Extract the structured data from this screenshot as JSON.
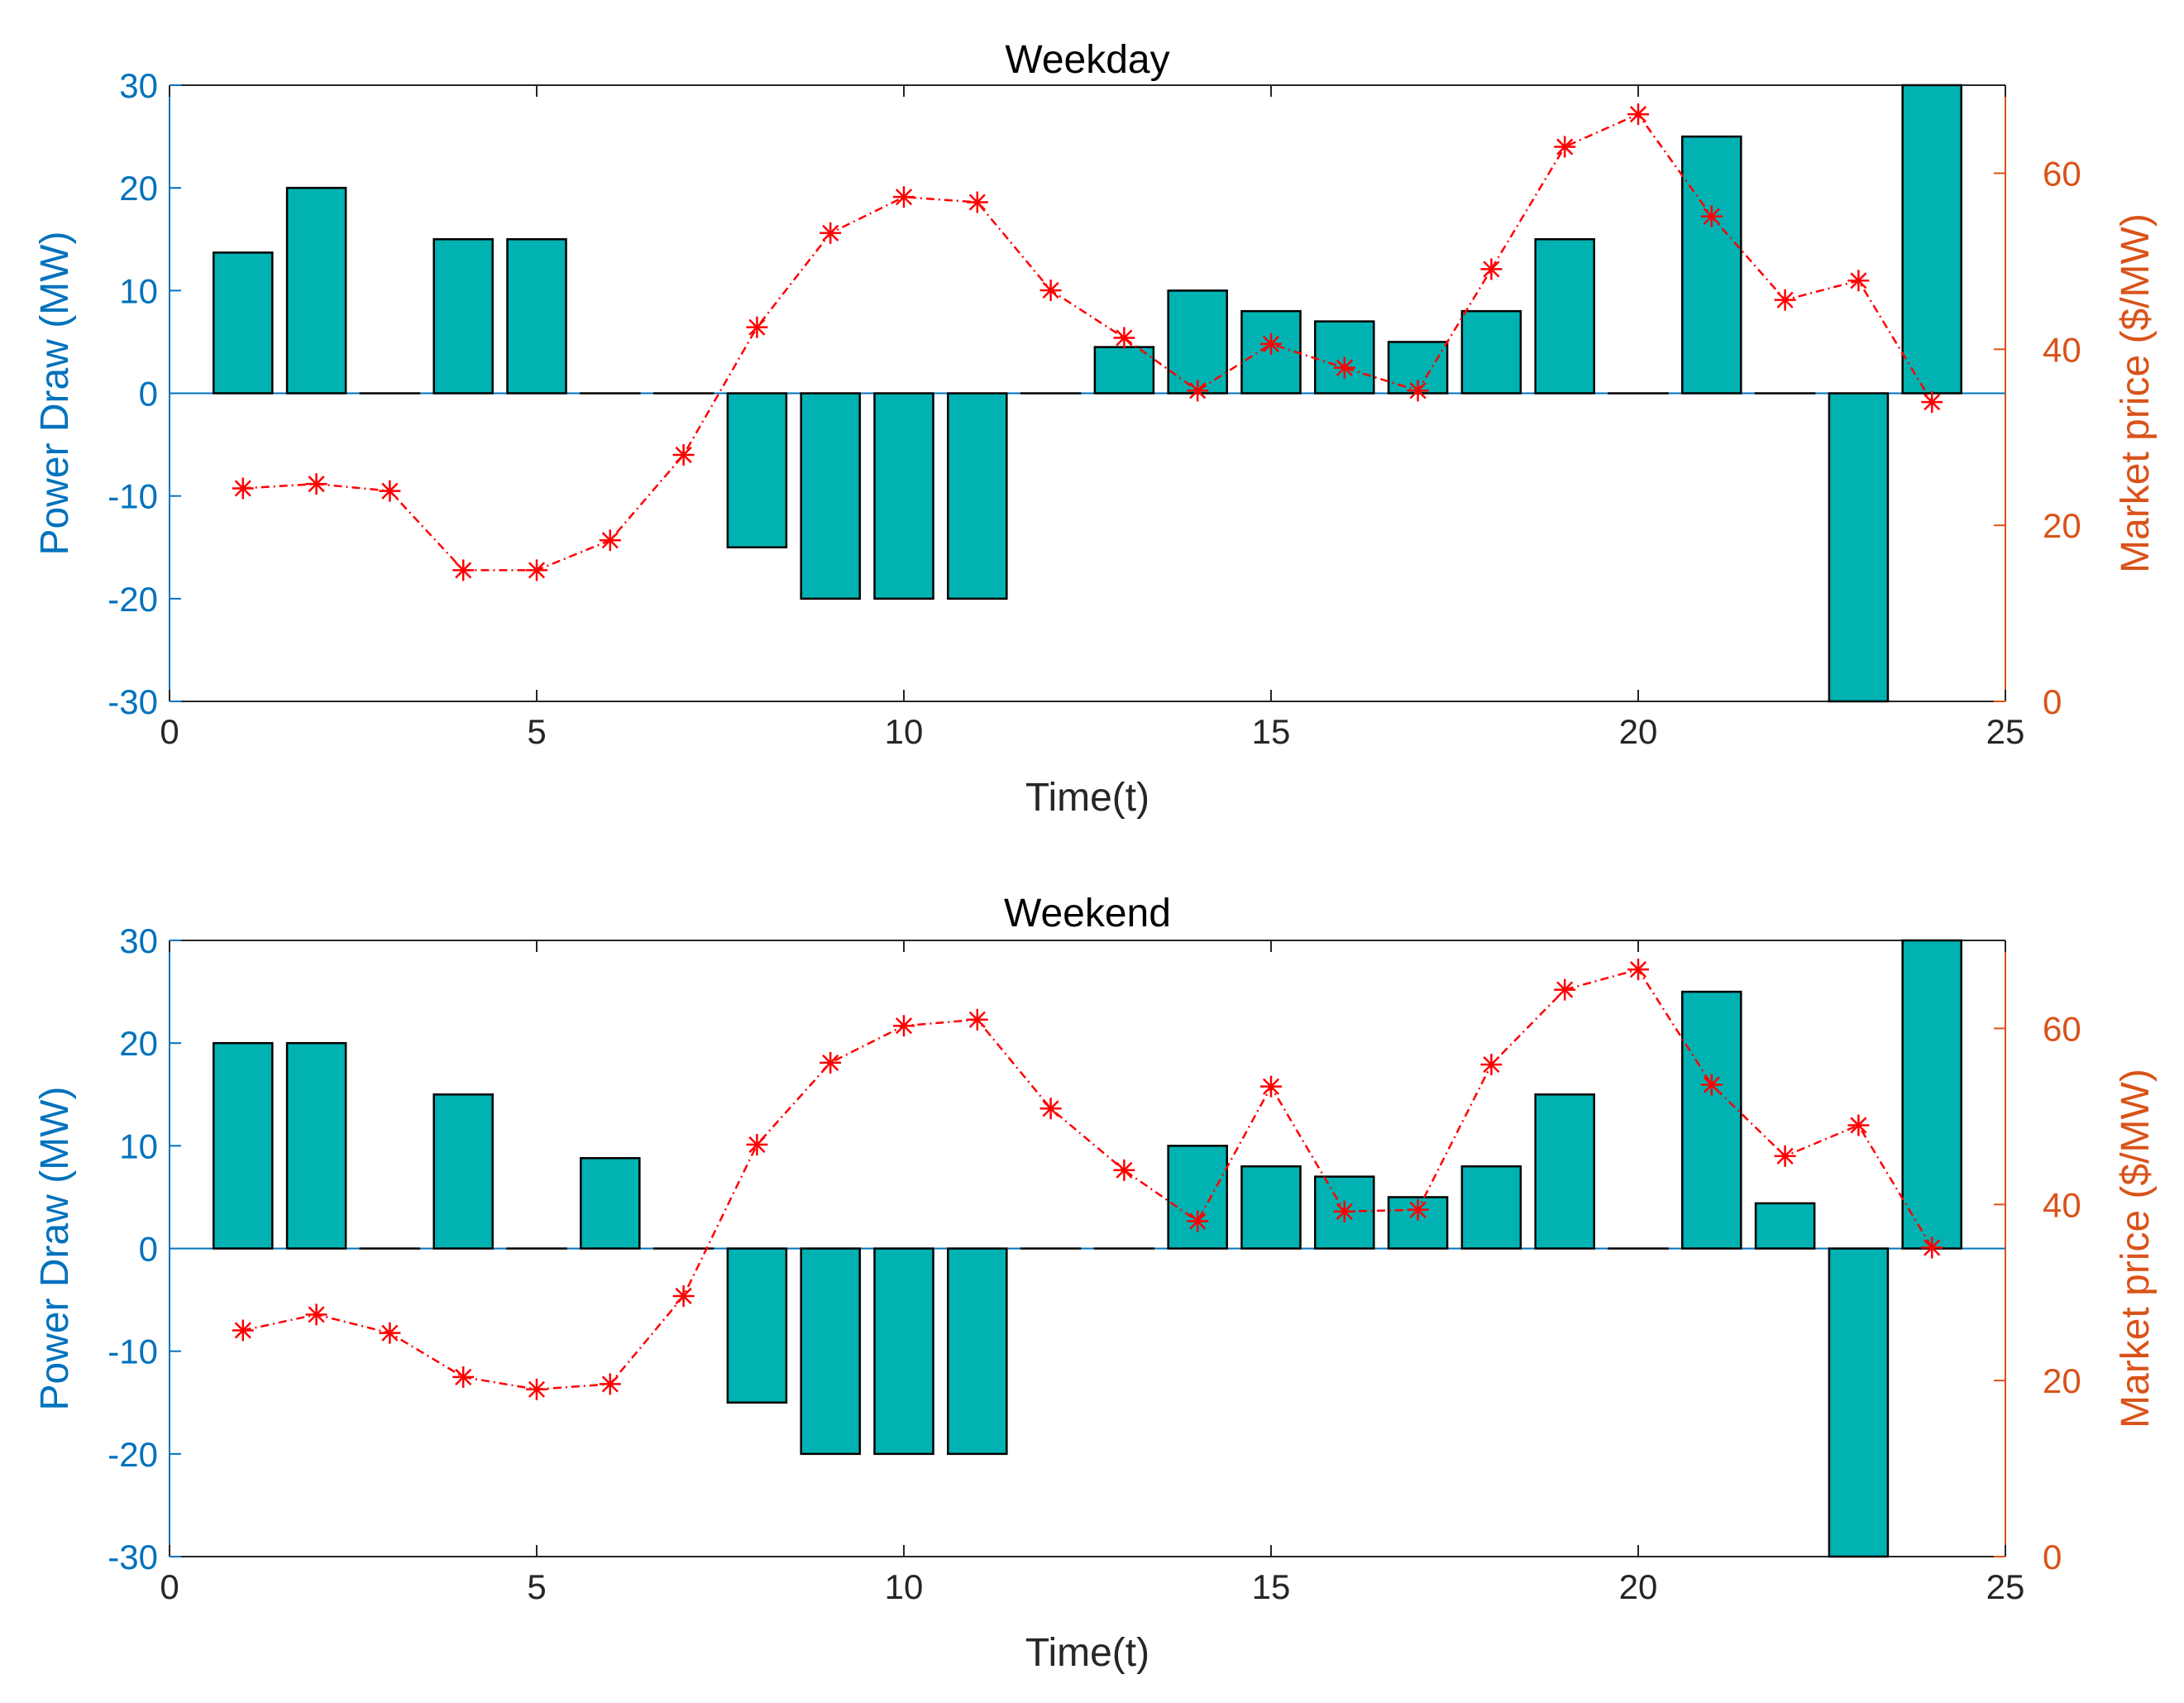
{
  "figure": {
    "colors": {
      "left_axis": "#0072BD",
      "right_axis": "#D95319",
      "bar_fill": "#00B2B2",
      "bar_edge": "#000000",
      "line": "#FF0000",
      "zero_line": "#0072BD"
    }
  },
  "chart_data": [
    {
      "type": "bar",
      "title": "Weekday",
      "xlabel": "Time(t)",
      "ylabel": "Power Draw (MW)",
      "y2label": "Market price ($/MW)",
      "xlim": [
        0,
        25
      ],
      "ylim": [
        -30,
        30
      ],
      "y2lim": [
        0,
        70
      ],
      "xticks": [
        0,
        5,
        10,
        15,
        20,
        25
      ],
      "yticks": [
        -30,
        -20,
        -10,
        0,
        10,
        20,
        30
      ],
      "y2ticks": [
        0,
        20,
        40,
        60
      ],
      "grid": false,
      "x": [
        1,
        2,
        3,
        4,
        5,
        6,
        7,
        8,
        9,
        10,
        11,
        12,
        13,
        14,
        15,
        16,
        17,
        18,
        19,
        20,
        21,
        22,
        23,
        24
      ],
      "series": [
        {
          "axis": "left",
          "kind": "bar",
          "values": [
            13.7,
            20,
            0,
            15,
            15,
            0,
            0,
            -15,
            -20,
            -20,
            -20,
            0,
            4.5,
            10,
            8,
            7,
            5,
            8,
            15,
            0,
            25,
            0,
            -30,
            30
          ]
        },
        {
          "axis": "right",
          "kind": "line",
          "marker": "asterisk",
          "style": "dash-dot",
          "values": [
            24.2,
            24.7,
            23.9,
            14.9,
            14.9,
            18.3,
            28,
            42.5,
            53.2,
            57.3,
            56.7,
            46.7,
            41.3,
            35.3,
            40.6,
            37.9,
            35.3,
            49.1,
            63,
            66.7,
            55.1,
            45.6,
            47.8,
            34
          ]
        }
      ]
    },
    {
      "type": "bar",
      "title": "Weekend",
      "xlabel": "Time(t)",
      "ylabel": "Power Draw (MW)",
      "y2label": "Market price ($/MW)",
      "xlim": [
        0,
        25
      ],
      "ylim": [
        -30,
        30
      ],
      "y2lim": [
        0,
        70
      ],
      "xticks": [
        0,
        5,
        10,
        15,
        20,
        25
      ],
      "yticks": [
        -30,
        -20,
        -10,
        0,
        10,
        20,
        30
      ],
      "y2ticks": [
        0,
        20,
        40,
        60
      ],
      "grid": false,
      "x": [
        1,
        2,
        3,
        4,
        5,
        6,
        7,
        8,
        9,
        10,
        11,
        12,
        13,
        14,
        15,
        16,
        17,
        18,
        19,
        20,
        21,
        22,
        23,
        24
      ],
      "series": [
        {
          "axis": "left",
          "kind": "bar",
          "values": [
            20,
            20,
            0,
            15,
            0,
            8.8,
            0,
            -15,
            -20,
            -20,
            -20,
            0,
            0,
            10,
            8,
            7,
            5,
            8,
            15,
            0,
            25,
            4.4,
            -30,
            30
          ]
        },
        {
          "axis": "right",
          "kind": "line",
          "marker": "asterisk",
          "style": "dash-dot",
          "values": [
            25.7,
            27.5,
            25.4,
            20.4,
            19,
            19.6,
            29.6,
            46.8,
            56.1,
            60.3,
            61,
            50.9,
            43.9,
            38.1,
            53.4,
            39.2,
            39.4,
            55.9,
            64.4,
            66.7,
            53.6,
            45.5,
            49,
            35.1
          ]
        }
      ]
    }
  ]
}
